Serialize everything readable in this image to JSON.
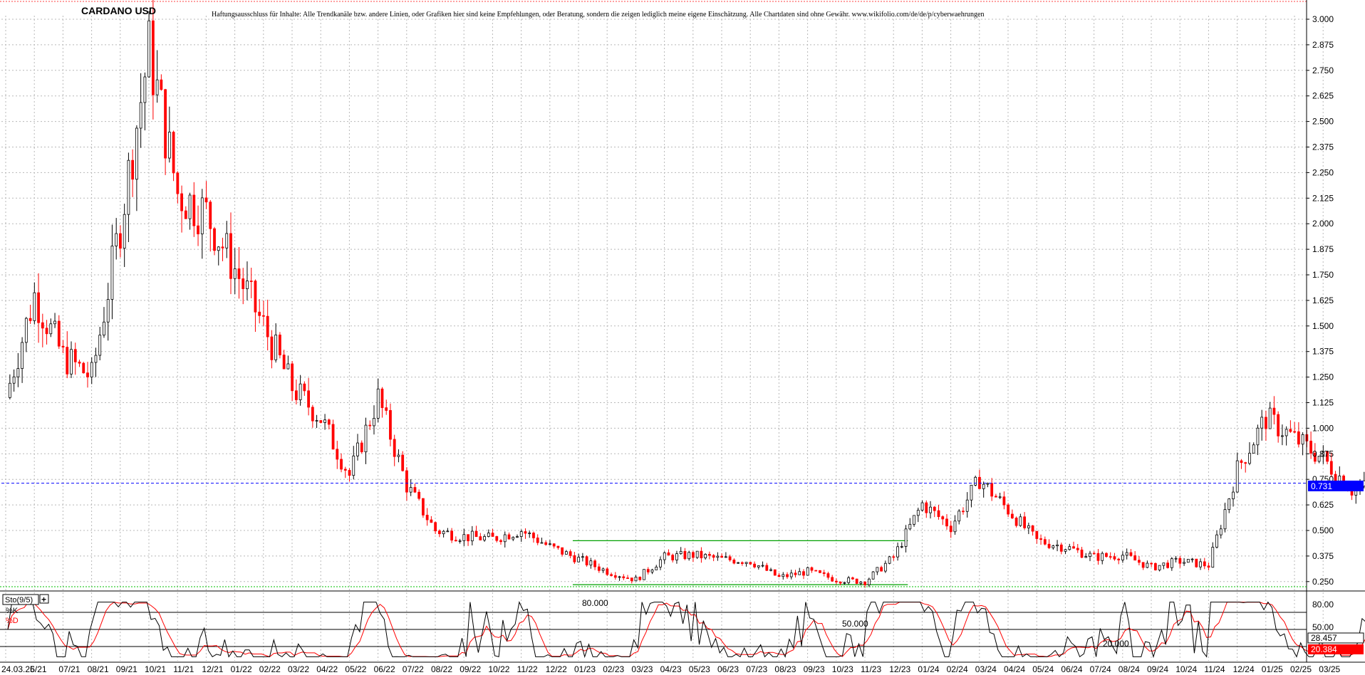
{
  "chart_data": {
    "type": "candlestick",
    "title": "CARDANO USD",
    "disclaimer": "Haftungsausschluss für Inhalte: Alle Trendkanäle bzw. andere Linien, oder Grafiken hier sind keine Empfehlungen, oder Beratung, sondern die zeigen lediglich meine eigene Einschätzung. Alle Chartdaten sind ohne Gewähr.  www.wikifolio.com/de/de/p/cyberwaehrungen",
    "y_axis": {
      "ylim": [
        0.2,
        3.05
      ],
      "ticks": [
        "3.000",
        "2.875",
        "2.750",
        "2.625",
        "2.500",
        "2.375",
        "2.250",
        "2.125",
        "2.000",
        "1.875",
        "1.750",
        "1.625",
        "1.500",
        "1.375",
        "1.250",
        "1.125",
        "1.000",
        "0.875",
        "0.750",
        "0.625",
        "0.500",
        "0.375",
        "0.250"
      ]
    },
    "x_axis": {
      "ticks": [
        "24.03.25",
        "6/21",
        "07/21",
        "08/21",
        "09/21",
        "10/21",
        "11/21",
        "12/21",
        "01/22",
        "02/22",
        "03/22",
        "04/22",
        "05/22",
        "06/22",
        "07/22",
        "08/22",
        "09/22",
        "10/22",
        "11/22",
        "12/22",
        "01/23",
        "02/23",
        "03/23",
        "04/23",
        "05/23",
        "06/23",
        "07/23",
        "08/23",
        "09/23",
        "10/23",
        "11/23",
        "12/23",
        "01/24",
        "02/24",
        "03/24",
        "04/24",
        "05/24",
        "06/24",
        "07/24",
        "08/24",
        "09/24",
        "10/24",
        "11/24",
        "12/24",
        "01/25",
        "02/25",
        "03/25"
      ]
    },
    "current_price": {
      "value": 0.731,
      "label": "0.731",
      "color": "#0000ff"
    },
    "candle_colors": {
      "up": "#000000",
      "down": "#ff0000"
    },
    "trendline_color": "#00a000",
    "price_series": {
      "months": [
        0,
        1,
        2,
        3,
        4,
        5,
        6,
        7,
        8,
        9,
        10,
        11,
        12,
        13,
        14,
        15,
        16,
        17,
        18,
        19,
        20,
        21,
        22,
        23,
        24,
        25,
        26,
        27,
        28,
        29,
        30,
        31,
        32,
        33,
        34,
        35,
        36,
        37,
        38,
        39,
        40,
        41,
        42,
        43,
        44,
        45,
        46,
        47,
        48
      ],
      "close": [
        1.15,
        1.65,
        1.35,
        1.25,
        2.0,
        2.85,
        2.15,
        2.05,
        1.78,
        1.5,
        1.2,
        1.05,
        0.77,
        1.15,
        0.72,
        0.5,
        0.47,
        0.46,
        0.5,
        0.42,
        0.36,
        0.3,
        0.26,
        0.37,
        0.38,
        0.36,
        0.35,
        0.27,
        0.3,
        0.26,
        0.25,
        0.37,
        0.63,
        0.52,
        0.75,
        0.6,
        0.45,
        0.42,
        0.37,
        0.38,
        0.32,
        0.35,
        0.33,
        0.8,
        1.05,
        0.95,
        0.85,
        0.7,
        0.731
      ]
    },
    "trendlines": [
      {
        "from": [
          19.8,
          0.45
        ],
        "to": [
          31.5,
          0.45
        ]
      },
      {
        "from": [
          19.8,
          0.235
        ],
        "to": [
          31.5,
          0.235
        ]
      }
    ],
    "indicator": {
      "name": "Sto(9/5)",
      "legend": [
        "%K",
        "%D"
      ],
      "levels": [
        {
          "value": 80,
          "label": "80.000"
        },
        {
          "value": 50,
          "label": "50.000"
        },
        {
          "value": 20,
          "label": "20.000"
        }
      ],
      "axis_labels": [
        "80.00",
        "50.00"
      ],
      "k_value": "28.457",
      "d_value": "20.384",
      "k_color": "#000000",
      "d_color": "#ff0000"
    }
  }
}
